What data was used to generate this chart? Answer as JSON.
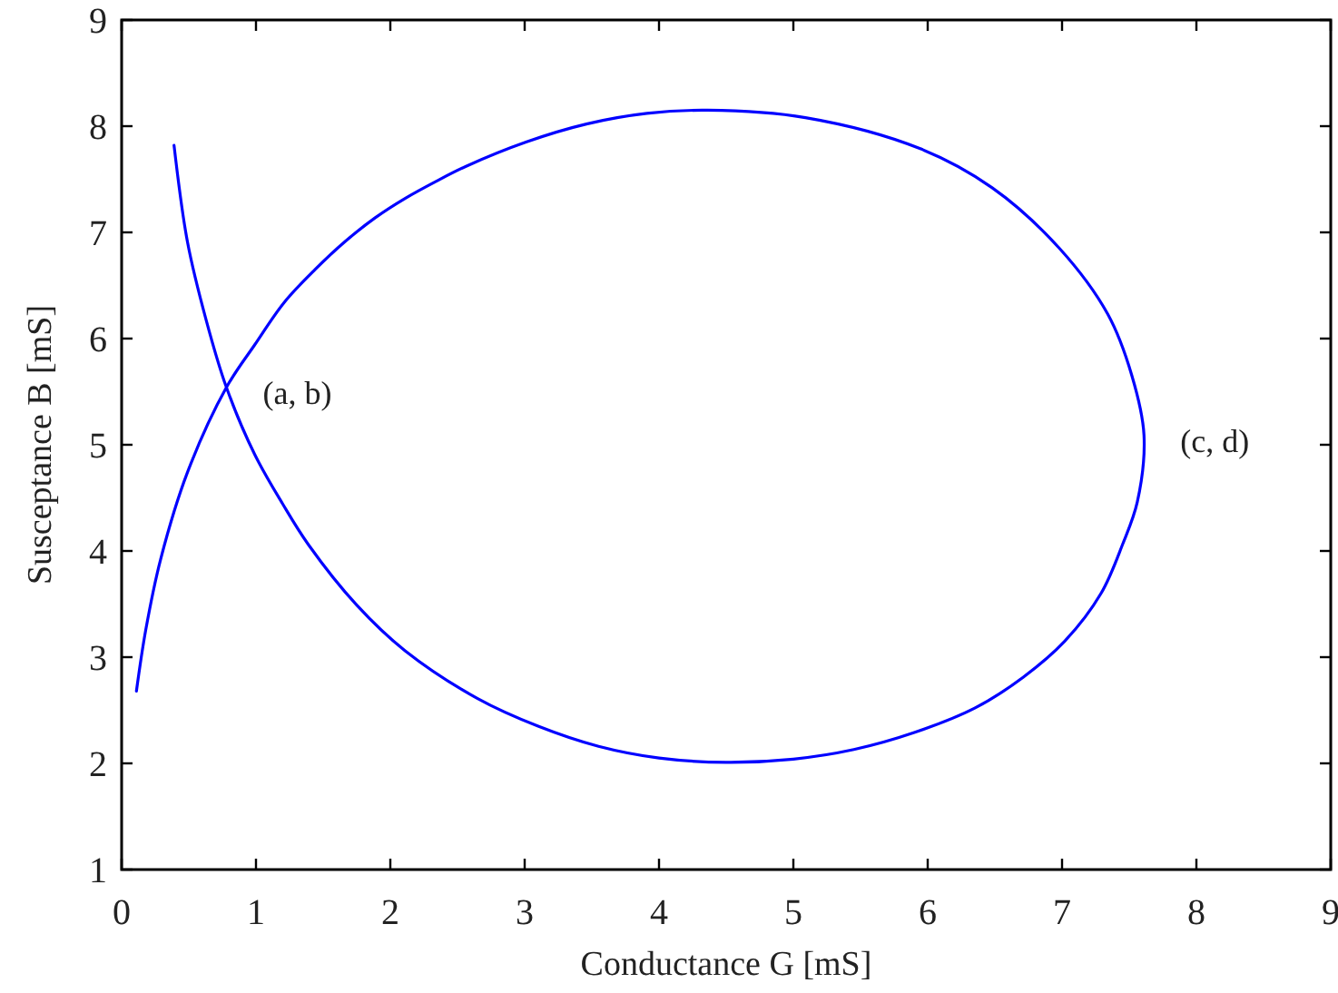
{
  "chart_data": {
    "type": "line",
    "xlabel": "Conductance G [mS]",
    "ylabel": "Susceptance B [mS]",
    "xlim": [
      0,
      9
    ],
    "ylim": [
      1,
      9
    ],
    "xticks": [
      0,
      1,
      2,
      3,
      4,
      5,
      6,
      7,
      8,
      9
    ],
    "yticks": [
      1,
      2,
      3,
      4,
      5,
      6,
      7,
      8,
      9
    ],
    "grid": false,
    "marker": "none",
    "line_style": "solid",
    "series": [
      {
        "color": "#0000ff",
        "x": [
          0.11,
          0.18,
          0.29,
          0.49,
          0.78,
          0.99,
          1.21,
          1.44,
          1.66,
          1.89,
          2.11,
          2.34,
          2.56,
          3.01,
          3.46,
          3.91,
          4.36,
          5.09,
          5.94,
          6.48,
          6.98,
          7.34,
          7.52,
          7.61,
          7.56,
          7.45,
          7.29,
          7.02,
          6.71,
          6.35,
          5.9,
          5.45,
          5.0,
          4.5,
          4.0,
          3.55,
          3.1,
          2.65,
          2.11,
          1.75,
          1.39,
          1.2,
          0.99,
          0.78,
          0.63,
          0.49,
          0.39
        ],
        "values": [
          2.68,
          3.26,
          3.92,
          4.74,
          5.54,
          5.94,
          6.34,
          6.65,
          6.91,
          7.14,
          7.32,
          7.48,
          7.62,
          7.85,
          8.02,
          8.12,
          8.15,
          8.08,
          7.79,
          7.42,
          6.85,
          6.23,
          5.65,
          5.09,
          4.46,
          4.06,
          3.6,
          3.15,
          2.81,
          2.52,
          2.29,
          2.13,
          2.04,
          2.01,
          2.05,
          2.16,
          2.35,
          2.61,
          3.06,
          3.49,
          4.06,
          4.44,
          4.91,
          5.54,
          6.17,
          6.91,
          7.82
        ]
      }
    ],
    "annotations": [
      {
        "text": "(a, b)",
        "x": 0.78,
        "y": 5.54
      },
      {
        "text": "(c, d)",
        "x": 7.61,
        "y": 5.09
      }
    ]
  }
}
